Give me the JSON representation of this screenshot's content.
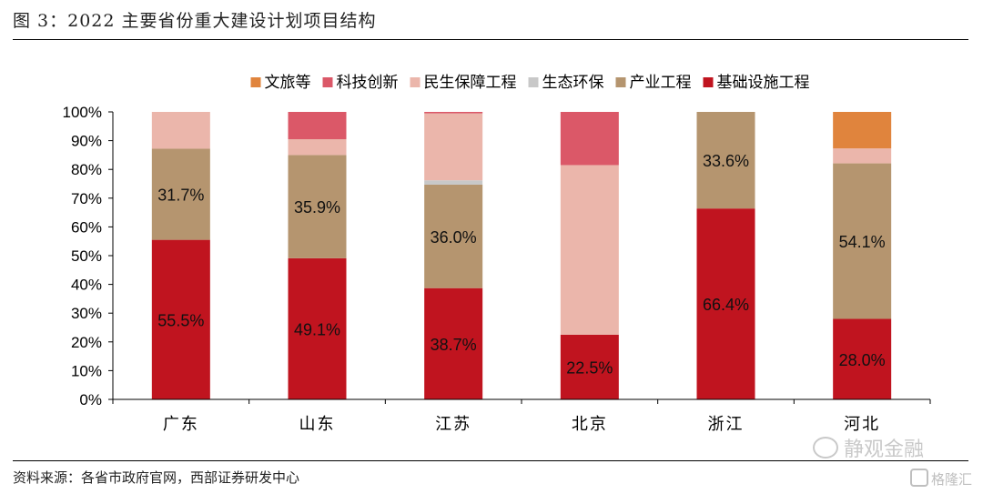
{
  "title": "图 3：2022 主要省份重大建设计划项目结构",
  "source": "资料来源：各省市政府官网，西部证券研发中心",
  "watermark": "静观金融",
  "logo": "格隆汇",
  "chart_data": {
    "type": "bar",
    "stacked": true,
    "normalized": true,
    "categories": [
      "广东",
      "山东",
      "江苏",
      "北京",
      "浙江",
      "河北"
    ],
    "ylim": [
      0,
      100
    ],
    "yticks": [
      "0%",
      "10%",
      "20%",
      "30%",
      "40%",
      "50%",
      "60%",
      "70%",
      "80%",
      "90%",
      "100%"
    ],
    "legend_position": "top",
    "series": [
      {
        "name": "基础设施工程",
        "color": "#c0141f",
        "values": [
          55.5,
          49.1,
          38.7,
          22.5,
          66.4,
          28.0
        ]
      },
      {
        "name": "产业工程",
        "color": "#b5956f",
        "values": [
          31.7,
          35.9,
          36.0,
          0,
          33.6,
          54.1
        ]
      },
      {
        "name": "生态环保",
        "color": "#c8c8c8",
        "values": [
          0,
          0,
          1.5,
          0,
          0,
          0
        ]
      },
      {
        "name": "民生保障工程",
        "color": "#ebb6ab",
        "values": [
          12.8,
          5.5,
          23.3,
          59.0,
          0,
          5.2
        ]
      },
      {
        "name": "科技创新",
        "color": "#db5868",
        "values": [
          0,
          9.5,
          0.5,
          18.5,
          0,
          0
        ]
      },
      {
        "name": "文旅等",
        "color": "#e0843d",
        "values": [
          0,
          0,
          0,
          0,
          0,
          12.7
        ]
      }
    ],
    "legend_order": [
      "文旅等",
      "科技创新",
      "民生保障工程",
      "生态环保",
      "产业工程",
      "基础设施工程"
    ],
    "data_labels": [
      {
        "series": "基础设施工程",
        "category": "广东",
        "text": "55.5%"
      },
      {
        "series": "产业工程",
        "category": "广东",
        "text": "31.7%"
      },
      {
        "series": "基础设施工程",
        "category": "山东",
        "text": "49.1%"
      },
      {
        "series": "产业工程",
        "category": "山东",
        "text": "35.9%"
      },
      {
        "series": "基础设施工程",
        "category": "江苏",
        "text": "38.7%"
      },
      {
        "series": "产业工程",
        "category": "江苏",
        "text": "36.0%"
      },
      {
        "series": "基础设施工程",
        "category": "北京",
        "text": "22.5%"
      },
      {
        "series": "基础设施工程",
        "category": "浙江",
        "text": "66.4%"
      },
      {
        "series": "产业工程",
        "category": "浙江",
        "text": "33.6%"
      },
      {
        "series": "基础设施工程",
        "category": "河北",
        "text": "28.0%"
      },
      {
        "series": "产业工程",
        "category": "河北",
        "text": "54.1%"
      }
    ]
  }
}
